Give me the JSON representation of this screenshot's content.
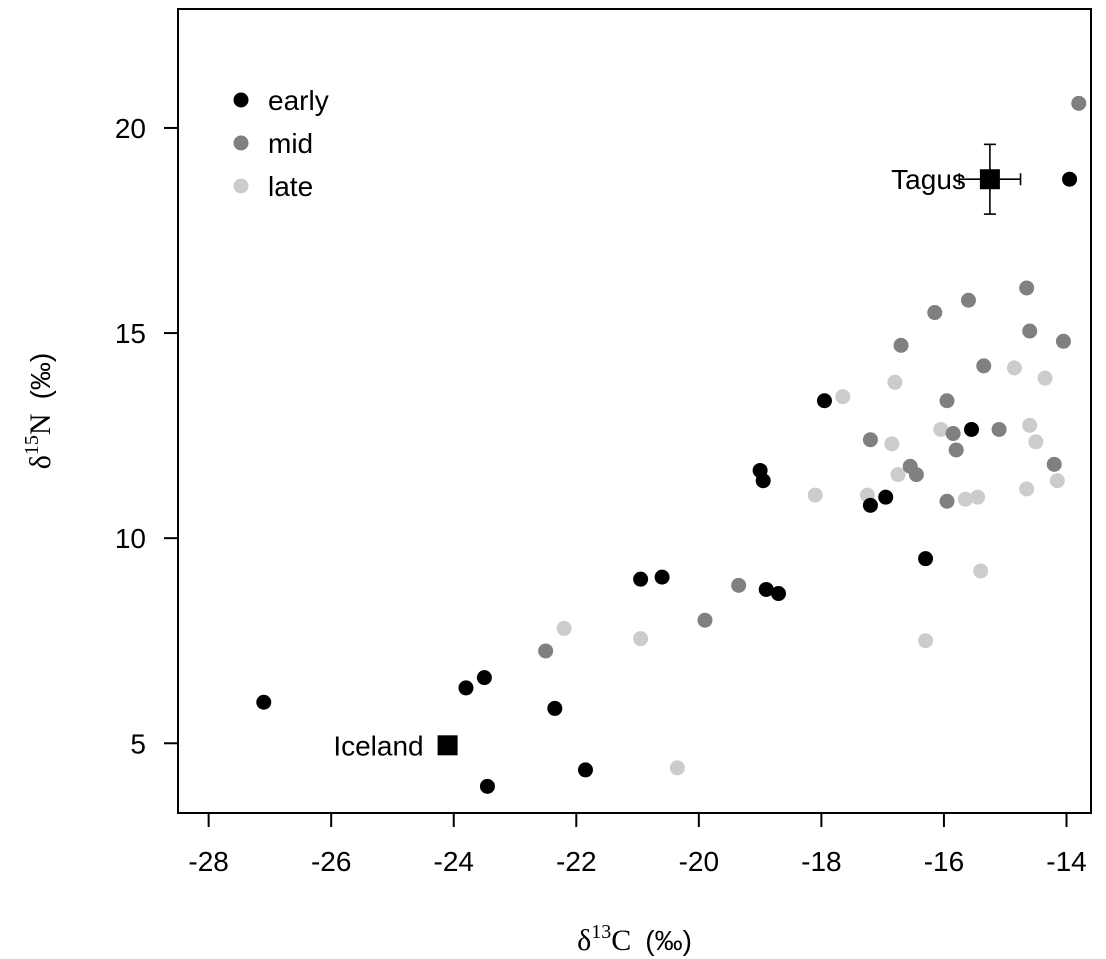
{
  "chart_data": {
    "type": "scatter",
    "title": "",
    "xlabel": {
      "delta": "δ",
      "sup": "13",
      "element": "C",
      "unit": "(‰)"
    },
    "ylabel": {
      "delta": "δ",
      "sup": "15",
      "element": "N",
      "unit": "(‰)"
    },
    "xlim": [
      -28.5,
      -13.6
    ],
    "ylim": [
      3.3,
      22.9
    ],
    "xticks": [
      -28,
      -26,
      -24,
      -22,
      -20,
      -18,
      -16,
      -14
    ],
    "xtick_labels": [
      "-28",
      "-26",
      "-24",
      "-22",
      "-20",
      "-18",
      "-16",
      "-14"
    ],
    "yticks": [
      5,
      10,
      15,
      20
    ],
    "ytick_labels": [
      "5",
      "10",
      "15",
      "20"
    ],
    "grid": false,
    "legend_position": "top-left",
    "series": [
      {
        "name": "early",
        "color": "#000000",
        "points": [
          [
            -27.1,
            6.0
          ],
          [
            -23.8,
            6.35
          ],
          [
            -23.5,
            6.6
          ],
          [
            -23.45,
            3.95
          ],
          [
            -22.35,
            5.85
          ],
          [
            -21.85,
            4.35
          ],
          [
            -20.95,
            9.0
          ],
          [
            -20.6,
            9.05
          ],
          [
            -19.0,
            11.65
          ],
          [
            -18.95,
            11.4
          ],
          [
            -18.9,
            8.75
          ],
          [
            -18.7,
            8.65
          ],
          [
            -17.95,
            13.35
          ],
          [
            -17.2,
            10.8
          ],
          [
            -16.95,
            11.0
          ],
          [
            -16.3,
            9.5
          ],
          [
            -15.55,
            12.65
          ],
          [
            -13.95,
            18.75
          ]
        ]
      },
      {
        "name": "mid",
        "color": "#808080",
        "points": [
          [
            -22.5,
            7.25
          ],
          [
            -19.9,
            8.0
          ],
          [
            -19.35,
            8.85
          ],
          [
            -17.2,
            12.4
          ],
          [
            -16.7,
            14.7
          ],
          [
            -16.55,
            11.75
          ],
          [
            -16.45,
            11.55
          ],
          [
            -16.15,
            15.5
          ],
          [
            -15.95,
            13.35
          ],
          [
            -15.95,
            10.9
          ],
          [
            -15.85,
            12.55
          ],
          [
            -15.8,
            12.15
          ],
          [
            -15.6,
            15.8
          ],
          [
            -15.35,
            14.2
          ],
          [
            -15.1,
            12.65
          ],
          [
            -14.65,
            16.1
          ],
          [
            -14.6,
            15.05
          ],
          [
            -14.2,
            11.8
          ],
          [
            -14.05,
            14.8
          ],
          [
            -13.8,
            20.6
          ]
        ]
      },
      {
        "name": "late",
        "color": "#cccccc",
        "points": [
          [
            -22.2,
            7.8
          ],
          [
            -20.95,
            7.55
          ],
          [
            -20.35,
            4.4
          ],
          [
            -18.1,
            11.05
          ],
          [
            -17.65,
            13.45
          ],
          [
            -17.25,
            11.05
          ],
          [
            -16.85,
            12.3
          ],
          [
            -16.8,
            13.8
          ],
          [
            -16.75,
            11.55
          ],
          [
            -16.3,
            7.5
          ],
          [
            -16.05,
            12.65
          ],
          [
            -15.65,
            10.95
          ],
          [
            -15.45,
            11.0
          ],
          [
            -15.4,
            9.2
          ],
          [
            -14.85,
            14.15
          ],
          [
            -14.65,
            11.2
          ],
          [
            -14.6,
            12.75
          ],
          [
            -14.5,
            12.35
          ],
          [
            -14.35,
            13.9
          ],
          [
            -14.15,
            11.4
          ]
        ]
      }
    ],
    "annotations": [
      {
        "label": "Tagus",
        "x": -15.25,
        "y": 18.75,
        "marker": "filled-square",
        "x_err": 0.5,
        "y_err": 0.85,
        "label_side": "left"
      },
      {
        "label": "Iceland",
        "x": -24.1,
        "y": 4.95,
        "marker": "filled-square",
        "label_side": "left"
      }
    ]
  }
}
